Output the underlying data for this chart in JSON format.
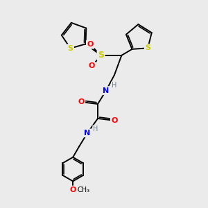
{
  "background_color": "#ebebeb",
  "fig_width": 3.0,
  "fig_height": 3.0,
  "dpi": 100,
  "atom_colors": {
    "C": "#000000",
    "H": "#708090",
    "N": "#0000FF",
    "O": "#FF0000",
    "S": "#cccc00"
  },
  "bond_color": "#000000",
  "bond_width": 1.4,
  "font_size_atom": 8,
  "font_size_small": 6,
  "xlim": [
    0,
    10
  ],
  "ylim": [
    0,
    10
  ]
}
